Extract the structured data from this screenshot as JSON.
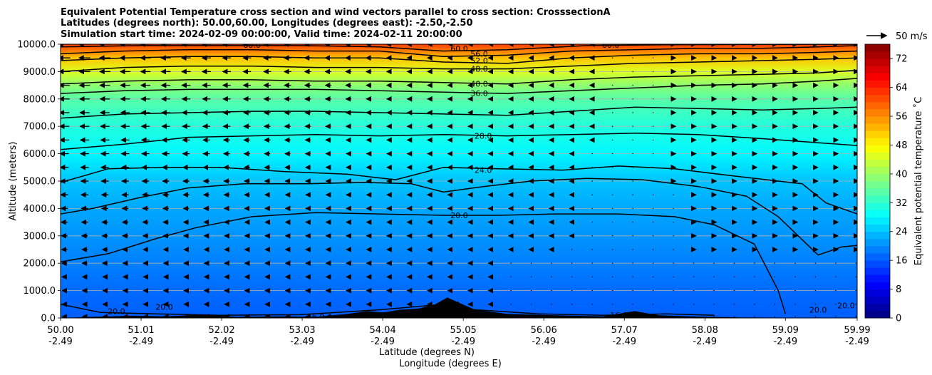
{
  "chart_data": {
    "type": "contour",
    "title_lines": [
      "Equivalent Potential Temperature cross section and wind vectors parallel to cross section: CrosssectionA",
      "Latitudes (degrees north): 50.00,60.00, Longitudes (degrees east): -2.50,-2.50",
      "Simulation start time: 2024-02-09 00:00:00, Valid time: 2024-02-11 20:00:00"
    ],
    "xlabel_lines": [
      "Latitude (degrees N)",
      "Longitude (degrees E)"
    ],
    "ylabel": "Altitude (meters)",
    "x_tick_lat": [
      "50.00",
      "51.01",
      "52.02",
      "53.03",
      "54.04",
      "55.05",
      "56.06",
      "57.07",
      "58.08",
      "59.09",
      "59.99"
    ],
    "x_tick_lon": [
      "-2.49",
      "-2.49",
      "-2.49",
      "-2.49",
      "-2.49",
      "-2.49",
      "-2.49",
      "-2.49",
      "-2.49",
      "-2.49",
      "-2.49"
    ],
    "y_ticks": [
      "0.0",
      "1000.0",
      "2000.0",
      "3000.0",
      "4000.0",
      "5000.0",
      "6000.0",
      "7000.0",
      "8000.0",
      "9000.0",
      "10000.0"
    ],
    "xlim": [
      50.0,
      59.99
    ],
    "ylim": [
      0,
      10000
    ],
    "grid": "horizontal",
    "colorbar": {
      "label": "Equivalent potential temperature ˚C",
      "ticks": [
        "0",
        "8",
        "16",
        "24",
        "32",
        "40",
        "48",
        "56",
        "64",
        "72"
      ],
      "range": [
        0,
        76
      ],
      "colormap": "jet"
    },
    "quiver_key": "50 m/s",
    "contour_lines": [
      {
        "level": 20.0,
        "x": [
          50.0,
          50.6,
          51.2,
          51.7,
          52.4,
          53.2,
          54.0,
          54.8,
          55.5,
          56.2,
          57.0,
          57.7,
          58.2,
          58.7,
          59.0,
          59.09
        ],
        "y": [
          2050,
          2350,
          2900,
          3300,
          3700,
          3850,
          3800,
          3750,
          3750,
          3800,
          3800,
          3700,
          3400,
          2700,
          1000,
          150
        ]
      },
      {
        "level": 20.0,
        "x": [
          50.0,
          50.4,
          51.0,
          51.6,
          52.3,
          53.1,
          53.8,
          54.4,
          54.8,
          55.3,
          55.9,
          56.6,
          57.3,
          58.0,
          58.6,
          59.0,
          59.5,
          59.8,
          59.99
        ],
        "y": [
          3800,
          4000,
          4400,
          4750,
          4900,
          4900,
          4950,
          4900,
          4600,
          4800,
          5000,
          5100,
          5050,
          4800,
          4450,
          3700,
          2300,
          2600,
          2650
        ]
      },
      {
        "level": 24.0,
        "x": [
          50.0,
          50.6,
          51.3,
          52.0,
          52.8,
          53.6,
          54.2,
          54.8,
          55.5,
          56.3,
          57.0,
          57.7,
          58.4,
          59.0,
          59.3,
          59.6,
          59.99
        ],
        "y": [
          4950,
          5450,
          5500,
          5500,
          5350,
          5250,
          5050,
          5500,
          5450,
          5400,
          5550,
          5450,
          5200,
          5000,
          4900,
          4200,
          3800
        ]
      },
      {
        "level": 28.0,
        "x": [
          50.0,
          50.8,
          51.6,
          52.4,
          53.2,
          54.0,
          54.8,
          55.6,
          56.4,
          57.2,
          58.0,
          58.8,
          59.5,
          59.99
        ],
        "y": [
          6150,
          6350,
          6600,
          6650,
          6700,
          6650,
          6700,
          6650,
          6700,
          6750,
          6700,
          6550,
          6400,
          6300
        ]
      },
      {
        "level": 32.0,
        "x": [
          50.0,
          50.8,
          51.6,
          52.4,
          53.2,
          54.0,
          54.8,
          55.6,
          56.4,
          57.2,
          58.0,
          58.8,
          59.5,
          59.99
        ],
        "y": [
          7300,
          7450,
          7500,
          7550,
          7550,
          7500,
          7450,
          7400,
          7550,
          7700,
          7650,
          7600,
          7650,
          7700
        ]
      },
      {
        "level": 36.0,
        "x": [
          50.0,
          50.8,
          51.6,
          52.4,
          53.2,
          54.0,
          54.8,
          55.6,
          56.4,
          57.2,
          58.0,
          58.8,
          59.5,
          59.99
        ],
        "y": [
          8200,
          8300,
          8350,
          8350,
          8350,
          8300,
          8250,
          8200,
          8300,
          8400,
          8500,
          8550,
          8650,
          8750
        ]
      },
      {
        "level": 40.0,
        "x": [
          50.0,
          50.8,
          51.6,
          52.4,
          53.2,
          54.0,
          54.8,
          55.6,
          56.4,
          57.2,
          58.0,
          58.8,
          59.5,
          59.99
        ],
        "y": [
          8550,
          8650,
          8700,
          8700,
          8650,
          8650,
          8600,
          8550,
          8700,
          8800,
          8850,
          8900,
          8950,
          9050
        ]
      },
      {
        "level": 48.0,
        "x": [
          50.0,
          50.8,
          51.6,
          52.4,
          53.2,
          54.0,
          54.8,
          55.6,
          56.4,
          57.2,
          58.0,
          58.8,
          59.5,
          59.99
        ],
        "y": [
          9000,
          9150,
          9200,
          9200,
          9150,
          9150,
          9100,
          9100,
          9200,
          9300,
          9350,
          9400,
          9450,
          9500
        ]
      },
      {
        "level": 52.0,
        "x": [
          50.0,
          50.8,
          51.6,
          52.4,
          53.2,
          54.0,
          54.8,
          55.6,
          56.4,
          57.2,
          58.0,
          58.8,
          59.5,
          59.99
        ],
        "y": [
          9400,
          9500,
          9550,
          9550,
          9500,
          9500,
          9350,
          9300,
          9500,
          9600,
          9650,
          9650,
          9700,
          9750
        ]
      },
      {
        "level": 56.0,
        "x": [
          50.0,
          50.8,
          51.6,
          52.4,
          53.2,
          54.0,
          54.8,
          55.6,
          56.4,
          57.2,
          58.0,
          58.8,
          59.5,
          59.99
        ],
        "y": [
          9650,
          9750,
          9800,
          9800,
          9750,
          9750,
          9550,
          9600,
          9750,
          9800,
          9850,
          9850,
          9900,
          9950
        ]
      },
      {
        "level": 60.0,
        "x": [
          50.0,
          51.0,
          52.0,
          53.0,
          54.0,
          54.8,
          55.6,
          56.6,
          57.6,
          58.6,
          59.99
        ],
        "y": [
          9900,
          9950,
          9950,
          9950,
          9900,
          9750,
          9800,
          9950,
          9980,
          9990,
          10000
        ]
      },
      {
        "level": 16.0,
        "x": [
          50.0,
          50.5,
          51.2,
          52.0,
          53.0,
          54.0,
          54.6,
          55.2,
          56.0,
          56.8,
          57.6,
          58.2
        ],
        "y": [
          500,
          200,
          150,
          100,
          120,
          300,
          450,
          300,
          150,
          100,
          150,
          100
        ]
      }
    ],
    "contour_labels": [
      {
        "text": "60.0",
        "x": 55.0,
        "y": 9850
      },
      {
        "text": "56.0",
        "x": 55.25,
        "y": 9650
      },
      {
        "text": "52.0",
        "x": 55.25,
        "y": 9400
      },
      {
        "text": "48.0",
        "x": 55.25,
        "y": 9100
      },
      {
        "text": "40.0",
        "x": 55.25,
        "y": 8550
      },
      {
        "text": "36.0",
        "x": 55.25,
        "y": 8200
      },
      {
        "text": "28.0",
        "x": 55.3,
        "y": 6650
      },
      {
        "text": "24.0",
        "x": 55.3,
        "y": 5400
      },
      {
        "text": "20.0",
        "x": 55.0,
        "y": 3750
      },
      {
        "text": "60.0",
        "x": 52.4,
        "y": 9980
      },
      {
        "text": "60.0",
        "x": 56.9,
        "y": 9980
      },
      {
        "text": "20.0",
        "x": 50.7,
        "y": 250
      },
      {
        "text": "20.0",
        "x": 51.3,
        "y": 400
      },
      {
        "text": "16.0",
        "x": 53.2,
        "y": 50
      },
      {
        "text": "20.0",
        "x": 54.0,
        "y": 100
      },
      {
        "text": "20.0",
        "x": 54.9,
        "y": 500
      },
      {
        "text": "16.0",
        "x": 57.0,
        "y": 100
      },
      {
        "text": "20.0",
        "x": 59.5,
        "y": 300
      },
      {
        "text": "20.0",
        "x": 59.85,
        "y": 450
      }
    ],
    "terrain": {
      "x": [
        50.0,
        50.4,
        50.9,
        51.3,
        51.8,
        52.2,
        52.8,
        53.2,
        53.6,
        53.85,
        54.05,
        54.25,
        54.5,
        54.7,
        54.85,
        55.0,
        55.2,
        55.6,
        56.2,
        56.8,
        57.2,
        57.5,
        58.0,
        58.5,
        59.99
      ],
      "y": [
        0,
        40,
        80,
        60,
        120,
        40,
        60,
        40,
        150,
        250,
        200,
        300,
        350,
        500,
        750,
        550,
        300,
        150,
        100,
        60,
        250,
        100,
        50,
        20,
        0
      ]
    },
    "wind": {
      "levels_m": [
        50,
        500,
        1000,
        1500,
        2000,
        2500,
        3000,
        3500,
        4000,
        4500,
        5000,
        5500,
        6000,
        6500,
        7000,
        7500,
        8000,
        8500,
        9000,
        9500,
        10000
      ],
      "description": "u component (m/s) parallel to cross section, sampled on a regular grid"
    }
  }
}
